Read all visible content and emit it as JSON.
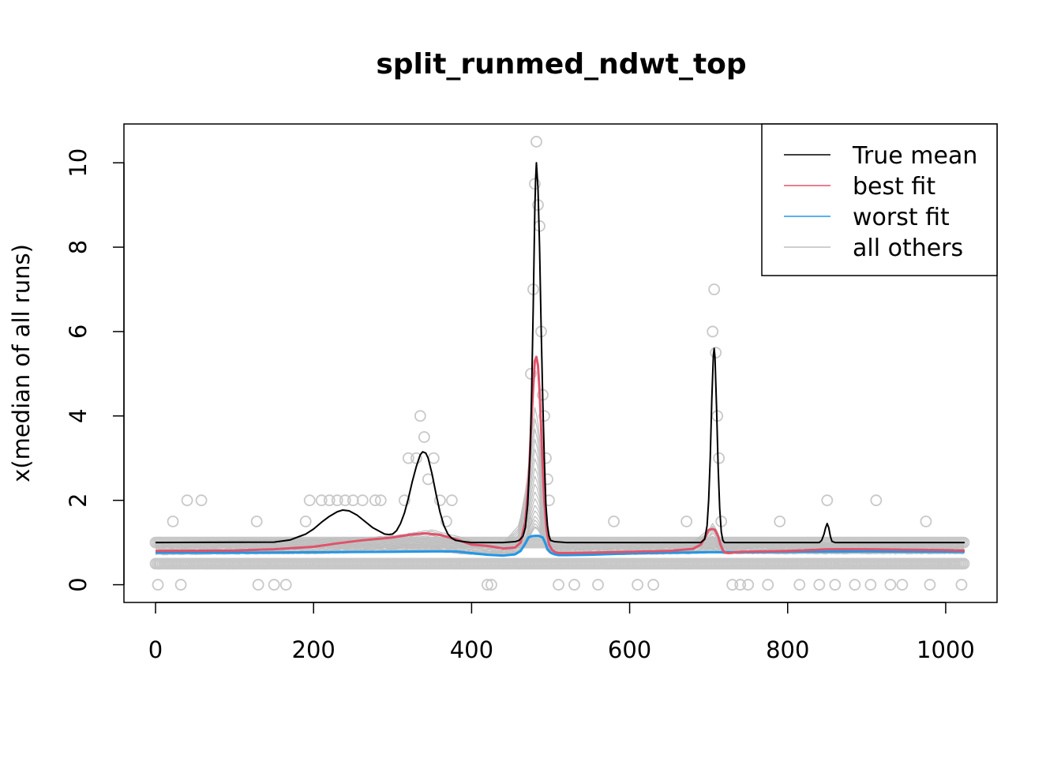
{
  "chart_data": {
    "type": "line",
    "title": "split_runmed_ndwt_top",
    "xlabel": "",
    "ylabel": "x(median of all runs)",
    "xlim": [
      -40,
      1065
    ],
    "ylim": [
      -0.42,
      10.92
    ],
    "x_ticks": [
      0,
      200,
      400,
      600,
      800,
      1000
    ],
    "x_tick_labels": [
      "0",
      "200",
      "400",
      "600",
      "800",
      "1000"
    ],
    "y_ticks": [
      0,
      2,
      4,
      6,
      8,
      10
    ],
    "y_tick_labels": [
      "0",
      "2",
      "4",
      "6",
      "8",
      "10"
    ],
    "grid": false,
    "legend_position": "top-right",
    "colors": {
      "true_mean": "#000000",
      "best_fit": "#DF536B",
      "worst_fit": "#2297E6",
      "all_others": "#BEBEBE",
      "points": "#C8C8C8"
    },
    "series": [
      {
        "name": "True mean",
        "key": "true_mean",
        "x": [
          0,
          150,
          170,
          190,
          200,
          210,
          220,
          230,
          237,
          245,
          255,
          265,
          275,
          285,
          290,
          295,
          300,
          305,
          310,
          315,
          320,
          325,
          330,
          335,
          338,
          342,
          345,
          350,
          355,
          360,
          365,
          370,
          375,
          380,
          390,
          400,
          420,
          440,
          455,
          460,
          465,
          468,
          471,
          474,
          476,
          478,
          480,
          481,
          482,
          484,
          486,
          488,
          490,
          492,
          494,
          496,
          498,
          500,
          505,
          520,
          550,
          600,
          650,
          690,
          695,
          698,
          700,
          702,
          704,
          706,
          707,
          708,
          710,
          712,
          714,
          716,
          718,
          720,
          740,
          800,
          840,
          843,
          846,
          848,
          850,
          852,
          854,
          856,
          860,
          900,
          1000,
          1024
        ],
        "values": [
          1.0,
          1.01,
          1.06,
          1.2,
          1.32,
          1.48,
          1.62,
          1.73,
          1.77,
          1.75,
          1.65,
          1.5,
          1.35,
          1.25,
          1.2,
          1.19,
          1.2,
          1.28,
          1.45,
          1.7,
          2.05,
          2.45,
          2.8,
          3.08,
          3.15,
          3.12,
          3.0,
          2.62,
          2.15,
          1.72,
          1.4,
          1.2,
          1.1,
          1.05,
          1.02,
          1.0,
          1.0,
          1.0,
          1.02,
          1.05,
          1.15,
          1.35,
          1.9,
          3.1,
          4.6,
          6.6,
          8.9,
          9.6,
          10.0,
          9.4,
          8.0,
          6.1,
          4.4,
          3.0,
          1.9,
          1.4,
          1.15,
          1.05,
          1.02,
          1.0,
          1.0,
          1.0,
          1.0,
          1.0,
          1.08,
          1.4,
          2.0,
          3.0,
          4.4,
          5.45,
          5.6,
          5.4,
          4.2,
          2.8,
          1.8,
          1.25,
          1.05,
          1.0,
          1.0,
          1.0,
          1.0,
          1.05,
          1.2,
          1.35,
          1.45,
          1.35,
          1.15,
          1.03,
          1.0,
          1.0,
          1.0,
          1.0
        ],
        "stroke_width": 2
      },
      {
        "name": "best fit",
        "key": "best_fit",
        "x": [
          0,
          100,
          150,
          200,
          230,
          260,
          300,
          320,
          340,
          360,
          380,
          400,
          420,
          440,
          455,
          462,
          468,
          472,
          475,
          478,
          480,
          482,
          484,
          486,
          488,
          490,
          492,
          495,
          498,
          502,
          506,
          510,
          520,
          550,
          600,
          650,
          680,
          690,
          695,
          700,
          705,
          708,
          712,
          715,
          718,
          720,
          725,
          730,
          740,
          800,
          850,
          900,
          1000,
          1024
        ],
        "values": [
          0.8,
          0.81,
          0.84,
          0.9,
          0.98,
          1.05,
          1.12,
          1.18,
          1.22,
          1.18,
          1.08,
          0.95,
          0.92,
          0.86,
          0.88,
          1.0,
          1.5,
          2.4,
          3.6,
          4.7,
          5.3,
          5.4,
          5.2,
          4.6,
          3.7,
          2.8,
          2.0,
          1.3,
          0.95,
          0.82,
          0.77,
          0.75,
          0.75,
          0.76,
          0.78,
          0.8,
          0.85,
          0.95,
          1.1,
          1.3,
          1.32,
          1.3,
          1.15,
          0.95,
          0.82,
          0.77,
          0.75,
          0.76,
          0.78,
          0.8,
          0.84,
          0.84,
          0.82,
          0.81
        ],
        "stroke_width": 3
      },
      {
        "name": "worst fit",
        "key": "worst_fit",
        "x": [
          0,
          100,
          200,
          300,
          350,
          380,
          400,
          420,
          440,
          455,
          462,
          468,
          472,
          476,
          480,
          485,
          490,
          493,
          496,
          500,
          505,
          510,
          520,
          550,
          600,
          650,
          700,
          750,
          800,
          900,
          1000,
          1024
        ],
        "values": [
          0.76,
          0.76,
          0.77,
          0.78,
          0.79,
          0.79,
          0.75,
          0.71,
          0.69,
          0.72,
          0.8,
          0.98,
          1.12,
          1.15,
          1.16,
          1.16,
          1.12,
          1.0,
          0.85,
          0.76,
          0.72,
          0.7,
          0.7,
          0.71,
          0.74,
          0.76,
          0.77,
          0.77,
          0.78,
          0.79,
          0.78,
          0.78
        ],
        "stroke_width": 3
      },
      {
        "name": "all others",
        "key": "all_others",
        "x": [
          0,
          200,
          300,
          350,
          400,
          440,
          460,
          470,
          475,
          480,
          485,
          490,
          495,
          500,
          510,
          600,
          680,
          700,
          705,
          710,
          715,
          720,
          800,
          1024
        ],
        "band_low": [
          0.72,
          0.74,
          0.78,
          0.8,
          0.72,
          0.7,
          0.78,
          0.95,
          1.2,
          1.35,
          1.3,
          1.05,
          0.82,
          0.74,
          0.72,
          0.72,
          0.74,
          0.76,
          0.78,
          0.77,
          0.75,
          0.74,
          0.74,
          0.74
        ],
        "band_high": [
          1.02,
          1.08,
          1.15,
          1.3,
          1.05,
          1.0,
          1.4,
          2.4,
          3.4,
          4.2,
          3.8,
          2.4,
          1.35,
          1.08,
          1.0,
          1.0,
          1.02,
          1.3,
          1.45,
          1.3,
          1.05,
          1.0,
          1.0,
          1.0
        ],
        "line_count": 18,
        "stroke_width": 1.2
      }
    ],
    "scatter_points": {
      "name": "observations",
      "base_x": [
        0,
        1024
      ],
      "base_y": [
        0.5,
        1.0
      ],
      "upper_x": [
        5,
        22,
        40,
        58,
        128,
        190,
        195,
        210,
        220,
        230,
        240,
        250,
        262,
        278,
        285,
        315,
        320,
        330,
        335,
        340,
        345,
        352,
        360,
        368,
        375,
        470,
        475,
        478,
        480,
        482,
        484,
        486,
        488,
        490,
        492,
        494,
        496,
        498,
        580,
        672,
        705,
        707,
        709,
        711,
        713,
        716,
        790,
        850,
        912,
        975
      ],
      "upper_y": [
        1.0,
        1.5,
        2.0,
        2.0,
        1.5,
        1.5,
        2.0,
        2.0,
        2.0,
        2.0,
        2.0,
        2.0,
        2.0,
        2.0,
        2.0,
        2.0,
        3.0,
        3.0,
        4.0,
        3.5,
        2.5,
        3.0,
        2.0,
        1.5,
        2.0,
        1.5,
        5.0,
        7.0,
        9.5,
        10.5,
        9.0,
        8.5,
        6.0,
        4.5,
        4.0,
        3.0,
        2.5,
        2.0,
        1.5,
        1.5,
        6.0,
        7.0,
        5.5,
        4.0,
        3.0,
        1.5,
        1.5,
        2.0,
        2.0,
        1.5
      ],
      "lower_x": [
        3,
        5,
        32,
        38,
        65,
        92,
        100,
        130,
        138,
        150,
        165,
        205,
        295,
        380,
        390,
        420,
        425,
        440,
        460,
        510,
        515,
        530,
        560,
        570,
        575,
        590,
        600,
        610,
        630,
        660,
        675,
        730,
        740,
        750,
        770,
        775,
        795,
        805,
        815,
        825,
        840,
        855,
        860,
        865,
        870,
        885,
        905,
        920,
        930,
        945,
        950,
        980,
        1000,
        1010,
        1020
      ],
      "lower_y": [
        0.0,
        0.5,
        0.0,
        0.5,
        0.5,
        0.5,
        0.5,
        0.0,
        0.5,
        0.0,
        0.0,
        0.5,
        0.5,
        0.5,
        0.5,
        0.0,
        0.0,
        0.5,
        0.5,
        0.0,
        0.5,
        0.0,
        0.0,
        0.5,
        0.5,
        0.5,
        0.5,
        0.0,
        0.0,
        0.5,
        0.5,
        0.0,
        0.0,
        0.0,
        0.5,
        0.0,
        0.5,
        0.5,
        0.0,
        0.5,
        0.0,
        0.5,
        0.0,
        0.5,
        0.5,
        0.0,
        0.0,
        0.5,
        0.0,
        0.0,
        0.5,
        0.0,
        0.5,
        0.5,
        0.0
      ]
    },
    "legend": [
      {
        "label": "True mean",
        "key": "true_mean"
      },
      {
        "label": "best fit",
        "key": "best_fit"
      },
      {
        "label": "worst fit",
        "key": "worst_fit"
      },
      {
        "label": "all others",
        "key": "all_others"
      }
    ]
  }
}
